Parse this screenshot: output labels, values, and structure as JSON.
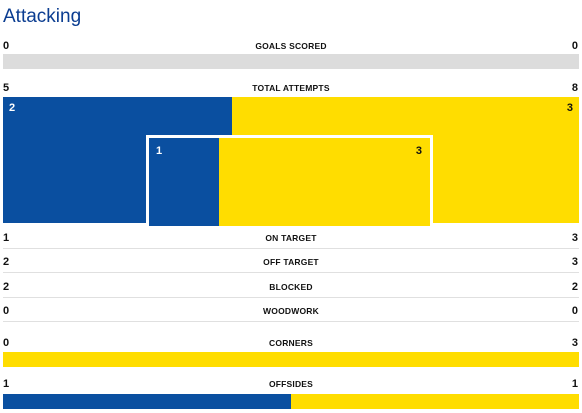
{
  "section": {
    "title": "Attacking"
  },
  "colors": {
    "home": "#0a4fa0",
    "away": "#ffdd00",
    "neutral": "#dcdcdc"
  },
  "stats": {
    "goals_scored": {
      "label": "GOALS SCORED",
      "home": "0",
      "away": "0"
    },
    "total_attempts": {
      "label": "TOTAL ATTEMPTS",
      "home": "5",
      "away": "8"
    },
    "off_target_attempts": {
      "home": "2",
      "away": "3"
    },
    "on_target_attempts": {
      "home": "1",
      "away": "3"
    },
    "on_target": {
      "label": "ON TARGET",
      "home": "1",
      "away": "3"
    },
    "off_target": {
      "label": "OFF TARGET",
      "home": "2",
      "away": "3"
    },
    "blocked": {
      "label": "BLOCKED",
      "home": "2",
      "away": "2"
    },
    "woodwork": {
      "label": "WOODWORK",
      "home": "0",
      "away": "0"
    },
    "corners": {
      "label": "CORNERS",
      "home": "0",
      "away": "3"
    },
    "offsides": {
      "label": "OFFSIDES",
      "home": "1",
      "away": "1"
    }
  }
}
